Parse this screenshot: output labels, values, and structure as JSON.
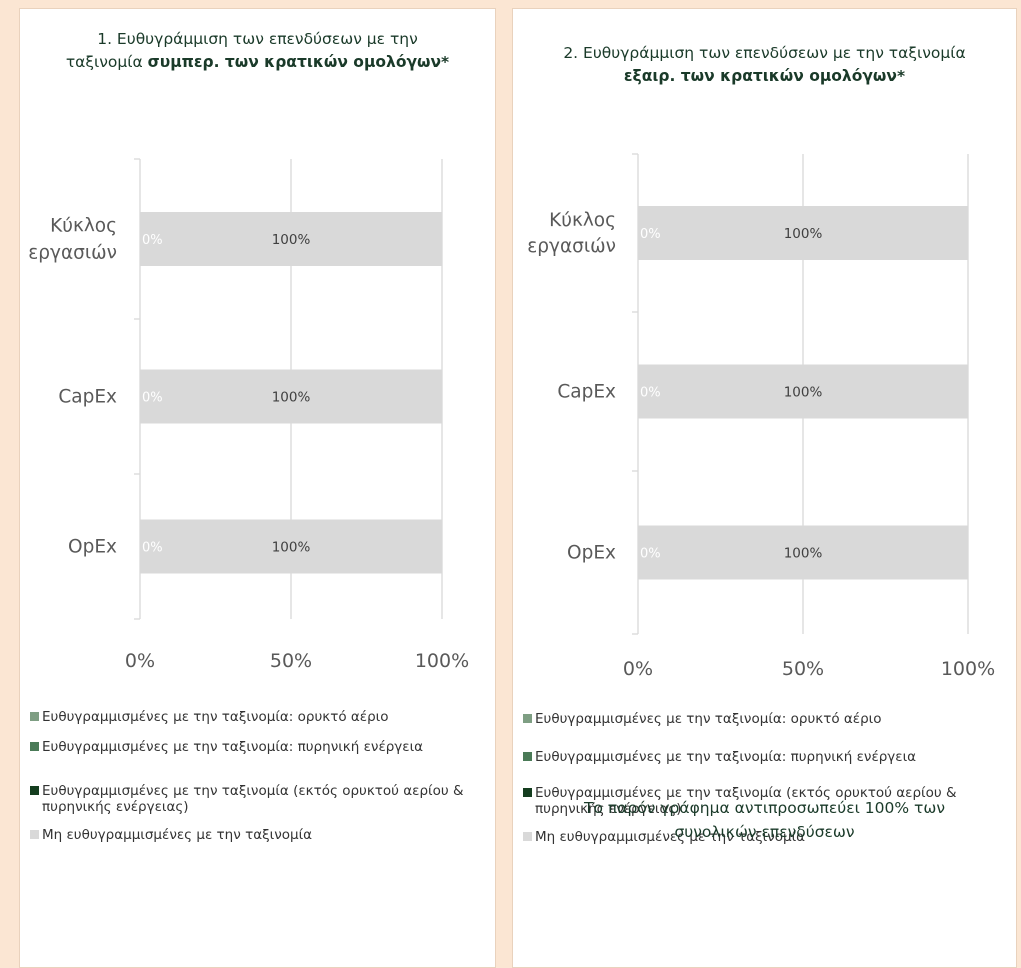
{
  "chart_data": [
    {
      "type": "bar",
      "orientation": "horizontal",
      "stacked": true,
      "title_parts": [
        {
          "text": "1. Ευθυγράμμιση των επενδύσεων με την ταξινομία ",
          "bold": false
        },
        {
          "text": "συμπερ. των κρατικών ομολόγων*",
          "bold": true
        }
      ],
      "categories": [
        "Κύκλος εργασιών",
        "CapEx",
        "OpEx"
      ],
      "series": [
        {
          "name": "Ευθυγραμμισμένες με την ταξινομία: ορυκτό αέριο",
          "color": "#7e9e83",
          "values": [
            0,
            0,
            0
          ]
        },
        {
          "name": "Ευθυγραμμισμένες με την ταξινομία: πυρηνική ενέργεια",
          "color": "#4a7a57",
          "values": [
            0,
            0,
            0
          ]
        },
        {
          "name": "Ευθυγραμμισμένες με την ταξινομία (εκτός ορυκτού αερίου & πυρηνικής ενέργειας)",
          "color": "#143d1f",
          "values": [
            0,
            0,
            0
          ]
        },
        {
          "name": "Μη ευθυγραμμισμένες με την ταξινομία",
          "color": "#d9d9d9",
          "values": [
            100,
            100,
            100
          ]
        }
      ],
      "data_labels": [
        "100%",
        "100%",
        "100%"
      ],
      "small_labels": [
        "0%",
        "0%",
        "0%"
      ],
      "x_ticks": [
        "0%",
        "50%",
        "100%"
      ],
      "xlim": [
        0,
        100
      ],
      "grid": true,
      "legend_position": "bottom"
    },
    {
      "type": "bar",
      "orientation": "horizontal",
      "stacked": true,
      "title_parts": [
        {
          "text": "2. Ευθυγράμμιση των επενδύσεων με την ταξινομία ",
          "bold": false
        },
        {
          "text": "εξαιρ. των κρατικών ομολόγων*",
          "bold": true
        }
      ],
      "categories": [
        "Κύκλος εργασιών",
        "CapEx",
        "OpEx"
      ],
      "series": [
        {
          "name": "Ευθυγραμμισμένες με την ταξινομία: ορυκτό αέριο",
          "color": "#7e9e83",
          "values": [
            0,
            0,
            0
          ]
        },
        {
          "name": "Ευθυγραμμισμένες με την ταξινομία: πυρηνική ενέργεια",
          "color": "#4a7a57",
          "values": [
            0,
            0,
            0
          ]
        },
        {
          "name": "Ευθυγραμμισμένες με την ταξινομία (εκτός ορυκτού αερίου & πυρηνικής ενέργειας)",
          "color": "#143d1f",
          "values": [
            0,
            0,
            0
          ]
        },
        {
          "name": "Μη ευθυγραμμισμένες με την ταξινομία",
          "color": "#d9d9d9",
          "values": [
            100,
            100,
            100
          ]
        }
      ],
      "data_labels": [
        "100%",
        "100%",
        "100%"
      ],
      "small_labels": [
        "0%",
        "0%",
        "0%"
      ],
      "x_ticks": [
        "0%",
        "50%",
        "100%"
      ],
      "xlim": [
        0,
        100
      ],
      "grid": true,
      "legend_position": "bottom"
    }
  ],
  "footnote": "Το παρόν γράφημα αντιπροσωπεύει 100% των συνολικών επενδύσεων"
}
